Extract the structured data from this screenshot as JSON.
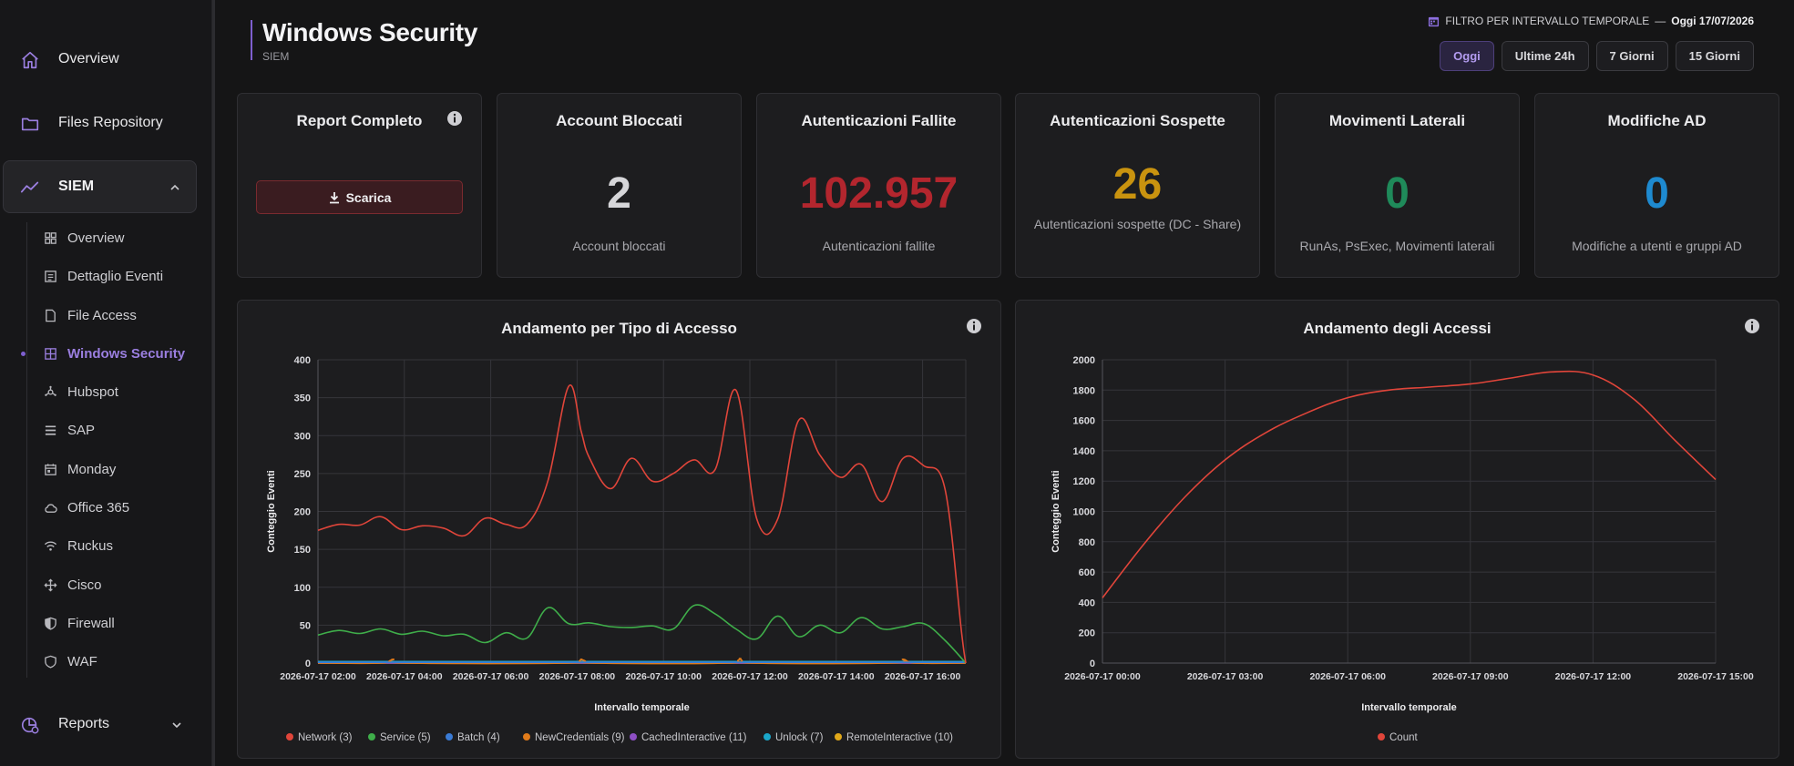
{
  "sidebar": {
    "top_items": [
      {
        "label": "Overview",
        "icon": "home-icon"
      },
      {
        "label": "Files Repository",
        "icon": "folder-icon"
      }
    ],
    "siem_label": "SIEM",
    "sub_items": [
      {
        "label": "Overview",
        "icon": "dashboard-icon"
      },
      {
        "label": "Dettaglio Eventi",
        "icon": "list-icon"
      },
      {
        "label": "File Access",
        "icon": "file-icon"
      },
      {
        "label": "Windows Security",
        "icon": "windows-icon",
        "active": true
      },
      {
        "label": "Hubspot",
        "icon": "hubspot-icon"
      },
      {
        "label": "SAP",
        "icon": "server-icon"
      },
      {
        "label": "Monday",
        "icon": "calendar-icon"
      },
      {
        "label": "Office 365",
        "icon": "cloud-icon"
      },
      {
        "label": "Ruckus",
        "icon": "wifi-icon"
      },
      {
        "label": "Cisco",
        "icon": "network-icon"
      },
      {
        "label": "Firewall",
        "icon": "shield-icon"
      },
      {
        "label": "WAF",
        "icon": "shield-outline-icon"
      }
    ],
    "reports_label": "Reports"
  },
  "header": {
    "title": "Windows Security",
    "subtitle": "SIEM",
    "filter_label": "FILTRO PER INTERVALLO TEMPORALE",
    "filter_sep": "—",
    "filter_date": "Oggi 17/07/2026",
    "ranges": [
      {
        "label": "Oggi",
        "active": true
      },
      {
        "label": "Ultime 24h"
      },
      {
        "label": "7 Giorni"
      },
      {
        "label": "15 Giorni"
      }
    ]
  },
  "cards": [
    {
      "title": "Report Completo",
      "button": "Scarica"
    },
    {
      "title": "Account Bloccati",
      "value": "2",
      "color": "#d6d6d9",
      "desc": "Account bloccati"
    },
    {
      "title": "Autenticazioni Fallite",
      "value": "102.957",
      "color": "#b3262e",
      "desc": "Autenticazioni fallite"
    },
    {
      "title": "Autenticazioni Sospette",
      "value": "26",
      "color": "#c9930f",
      "desc": "Autenticazioni sospette (DC - Share)"
    },
    {
      "title": "Movimenti Laterali",
      "value": "0",
      "color": "#1f8a5a",
      "desc": "RunAs, PsExec, Movimenti laterali"
    },
    {
      "title": "Modifiche AD",
      "value": "0",
      "color": "#1e8ad0",
      "desc": "Modifiche a utenti e gruppi AD"
    }
  ],
  "chart_data": [
    {
      "type": "line",
      "title": "Andamento per Tipo di Accesso",
      "xlabel": "Intervallo temporale",
      "ylabel": "Conteggio Eventi",
      "ylim": [
        0,
        400
      ],
      "yticks": [
        0,
        50,
        100,
        150,
        200,
        250,
        300,
        350,
        400
      ],
      "x_tick_labels": [
        "2026-07-17 02:00",
        "2026-07-17 04:00",
        "2026-07-17 06:00",
        "2026-07-17 08:00",
        "2026-07-17 10:00",
        "2026-07-17 12:00",
        "2026-07-17 14:00",
        "2026-07-17 16:00"
      ],
      "x_hours": [
        1.5,
        17.0
      ],
      "grid": true,
      "legend_position": "bottom",
      "series": [
        {
          "name": "Network (3)",
          "color": "#e0453a",
          "x": [
            1.5,
            2.0,
            2.5,
            3.0,
            3.5,
            4.0,
            4.5,
            5.0,
            5.5,
            6.0,
            6.5,
            7.0,
            7.5,
            7.8,
            8.0,
            8.5,
            9.0,
            9.5,
            10.0,
            10.5,
            11.0,
            11.5,
            12.0,
            12.5,
            13.0,
            13.5,
            14.0,
            14.5,
            15.0,
            15.5,
            16.0,
            16.5,
            16.9,
            17.0
          ],
          "values": [
            175,
            183,
            182,
            193,
            176,
            181,
            178,
            168,
            191,
            183,
            183,
            240,
            365,
            305,
            270,
            230,
            270,
            240,
            250,
            268,
            255,
            360,
            190,
            190,
            320,
            275,
            245,
            262,
            213,
            270,
            260,
            230,
            40,
            0
          ]
        },
        {
          "name": "Service (5)",
          "color": "#3fae4a",
          "x": [
            1.5,
            2.0,
            2.5,
            3.0,
            3.5,
            4.0,
            4.5,
            5.0,
            5.5,
            6.0,
            6.5,
            7.0,
            7.5,
            8.0,
            8.5,
            9.0,
            9.5,
            10.0,
            10.5,
            11.0,
            11.5,
            12.0,
            12.5,
            13.0,
            13.5,
            14.0,
            14.5,
            15.0,
            15.5,
            16.0,
            16.5,
            17.0
          ],
          "values": [
            37,
            43,
            39,
            45,
            38,
            42,
            36,
            38,
            27,
            40,
            33,
            73,
            52,
            53,
            48,
            47,
            49,
            45,
            76,
            65,
            45,
            32,
            62,
            35,
            50,
            40,
            60,
            45,
            48,
            52,
            30,
            0
          ]
        },
        {
          "name": "Batch (4)",
          "color": "#3a7bd5",
          "x": [
            1.5,
            17.0
          ],
          "values": [
            1,
            1
          ]
        },
        {
          "name": "NewCredentials (9)",
          "color": "#e07b1a",
          "x": [
            1.5,
            3.0,
            3.3,
            3.6,
            7.5,
            7.8,
            8.1,
            11.3,
            11.6,
            11.9,
            15.2,
            15.5,
            15.8,
            17.0
          ],
          "values": [
            0,
            0,
            5,
            0,
            0,
            5,
            0,
            0,
            6,
            0,
            0,
            5,
            0,
            0
          ]
        },
        {
          "name": "CachedInteractive (11)",
          "color": "#8e4fc4",
          "x": [
            1.5,
            17.0
          ],
          "values": [
            0,
            0
          ]
        },
        {
          "name": "Unlock (7)",
          "color": "#1aa6c9",
          "x": [
            1.5,
            17.0
          ],
          "values": [
            2,
            2
          ]
        },
        {
          "name": "RemoteInteractive (10)",
          "color": "#e0a81a",
          "x": [
            1.5,
            17.0
          ],
          "values": [
            0,
            0
          ]
        }
      ]
    },
    {
      "type": "line",
      "title": "Andamento degli Accessi",
      "xlabel": "Intervallo temporale",
      "ylabel": "Conteggio Eventi",
      "ylim": [
        0,
        2000
      ],
      "yticks": [
        0,
        200,
        400,
        600,
        800,
        1000,
        1200,
        1400,
        1600,
        1800,
        2000
      ],
      "x_tick_labels": [
        "2026-07-17 00:00",
        "2026-07-17 03:00",
        "2026-07-17 06:00",
        "2026-07-17 09:00",
        "2026-07-17 12:00",
        "2026-07-17 15:00"
      ],
      "x_hours": [
        0,
        15
      ],
      "grid": true,
      "legend_position": "bottom",
      "series": [
        {
          "name": "Count",
          "color": "#e0453a",
          "x": [
            0,
            1,
            2,
            3,
            4,
            5,
            6,
            7,
            8,
            9,
            10,
            11,
            12,
            13,
            14,
            15
          ],
          "values": [
            430,
            780,
            1090,
            1340,
            1520,
            1650,
            1750,
            1800,
            1820,
            1840,
            1880,
            1920,
            1900,
            1740,
            1470,
            1210
          ]
        }
      ]
    }
  ]
}
